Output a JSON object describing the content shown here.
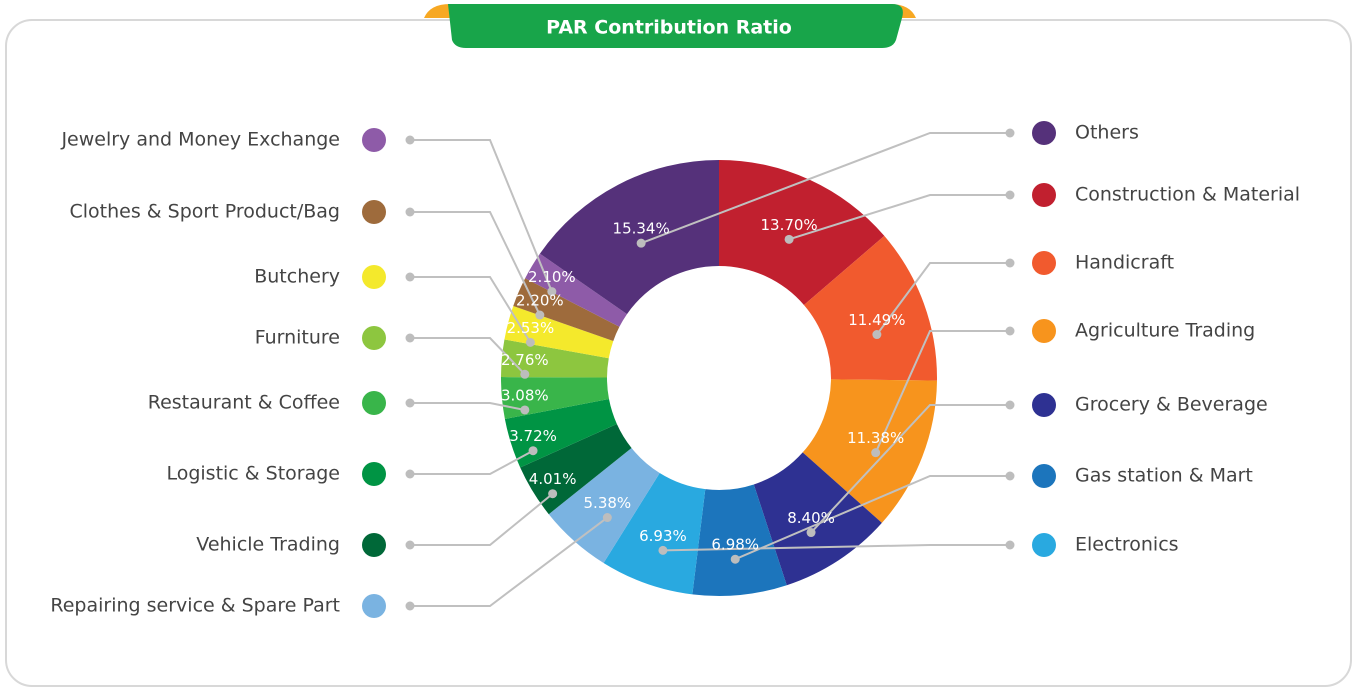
{
  "chart_data": {
    "type": "pie",
    "title": "PAR Contribution Ratio",
    "categories": [
      "Construction & Material",
      "Handicraft",
      "Agriculture Trading",
      "Grocery & Beverage",
      "Gas station & Mart",
      "Electronics",
      "Repairing service & Spare Part",
      "Vehicle Trading",
      "Logistic & Storage",
      "Restaurant & Coffee",
      "Furniture",
      "Butchery",
      "Clothes & Sport Product/Bag",
      "Jewelry and Money Exchange",
      "Others"
    ],
    "values": [
      13.7,
      11.49,
      11.38,
      8.4,
      6.98,
      6.93,
      5.38,
      4.01,
      3.72,
      3.08,
      2.76,
      2.53,
      2.2,
      2.1,
      15.34
    ],
    "value_labels": [
      "13.70%",
      "11.49%",
      "11.38%",
      "8.40%",
      "6.98%",
      "6.93%",
      "5.38%",
      "4.01%",
      "3.72%",
      "3.08%",
      "2.76%",
      "2.53%",
      "2.20%",
      "2.10%",
      "15.34%"
    ],
    "colors": [
      "#c1202f",
      "#f15a2e",
      "#f7941d",
      "#2e3192",
      "#1c75bc",
      "#29a9e0",
      "#7ab3e1",
      "#006838",
      "#009444",
      "#39b54a",
      "#8dc63f",
      "#f4e92c",
      "#9e6b3c",
      "#8e5ba8",
      "#55317a"
    ]
  }
}
